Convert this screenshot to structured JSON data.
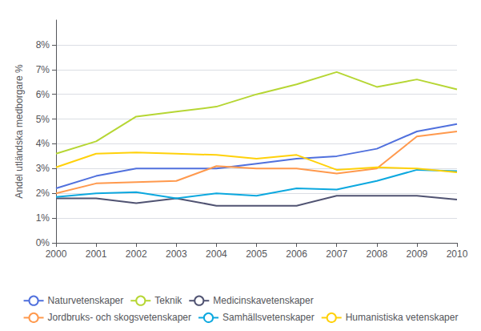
{
  "chart_data": {
    "type": "line",
    "ylabel": "Andel utländska medborgare %",
    "x": [
      2000,
      2001,
      2002,
      2003,
      2004,
      2005,
      2006,
      2007,
      2008,
      2009,
      2010
    ],
    "series": [
      {
        "name": "Naturvetenskaper",
        "values": [
          2.2,
          2.7,
          3.0,
          3.0,
          3.0,
          3.2,
          3.4,
          3.5,
          3.8,
          4.5,
          4.8
        ]
      },
      {
        "name": "Teknik",
        "values": [
          3.6,
          4.1,
          5.1,
          5.3,
          5.5,
          6.0,
          6.4,
          6.9,
          6.3,
          6.6,
          6.2
        ]
      },
      {
        "name": "Medicinskavetenskaper",
        "values": [
          1.8,
          1.8,
          1.6,
          1.8,
          1.5,
          1.5,
          1.5,
          1.9,
          1.9,
          1.9,
          1.75
        ]
      },
      {
        "name": "Jordbruks- och skogsvetenskaper",
        "values": [
          2.0,
          2.4,
          2.45,
          2.5,
          3.1,
          3.0,
          3.0,
          2.8,
          3.0,
          4.3,
          4.5
        ]
      },
      {
        "name": "Samhällsvetenskaper",
        "values": [
          1.85,
          2.0,
          2.05,
          1.8,
          2.0,
          1.9,
          2.2,
          2.15,
          2.5,
          2.95,
          2.9
        ]
      },
      {
        "name": "Humanistiska vetenskaper",
        "values": [
          3.05,
          3.6,
          3.65,
          3.6,
          3.55,
          3.4,
          3.55,
          2.95,
          3.05,
          3.0,
          2.85
        ]
      }
    ],
    "xlim": [
      2000,
      2010
    ],
    "xticks": [
      2000,
      2001,
      2002,
      2003,
      2004,
      2005,
      2006,
      2007,
      2008,
      2009,
      2010
    ],
    "ylim": [
      0,
      9
    ],
    "yticks": [
      {
        "value": 0,
        "label": "0%"
      },
      {
        "value": 1,
        "label": "1%"
      },
      {
        "value": 2,
        "label": "2%"
      },
      {
        "value": 3,
        "label": "3%"
      },
      {
        "value": 4,
        "label": "4%"
      },
      {
        "value": 5,
        "label": "5%"
      },
      {
        "value": 6,
        "label": "6%"
      },
      {
        "value": 7,
        "label": "7%"
      },
      {
        "value": 8,
        "label": "8%"
      }
    ],
    "grid": true,
    "legend": "bottom"
  }
}
